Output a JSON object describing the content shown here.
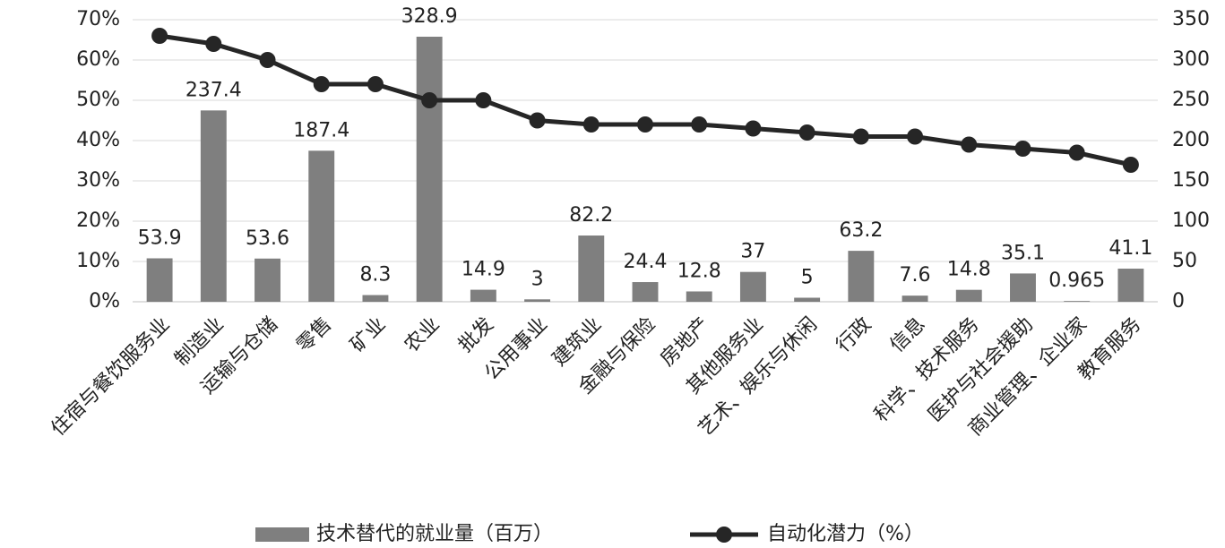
{
  "chart_data": {
    "type": "bar-line",
    "categories": [
      "住宿与餐饮服务业",
      "制造业",
      "运输与仓储",
      "零售",
      "矿业",
      "农业",
      "批发",
      "公用事业",
      "建筑业",
      "金融与保险",
      "房地产",
      "其他服务业",
      "艺术、娱乐与休闲",
      "行政",
      "信息",
      "科学、技术服务",
      "医护与社会援助",
      "商业管理、企业家",
      "教育服务"
    ],
    "series": [
      {
        "name": "技术替代的就业量（百万）",
        "type": "bar",
        "axis": "y2",
        "color": "#7f7f7f",
        "values": [
          53.9,
          237.4,
          53.6,
          187.4,
          8.3,
          328.9,
          14.9,
          3,
          82.2,
          24.4,
          12.8,
          37,
          5,
          63.2,
          7.6,
          14.8,
          35.1,
          0.965,
          41.1
        ]
      },
      {
        "name": "自动化潜力（%）",
        "type": "line",
        "axis": "y",
        "color": "#262626",
        "values": [
          66,
          64,
          60,
          54,
          54,
          50,
          50,
          45,
          44,
          44,
          44,
          43,
          42,
          41,
          41,
          39,
          38,
          37,
          34
        ]
      }
    ],
    "ylim": [
      0,
      70
    ],
    "yticks": [
      {
        "value": 0,
        "label": "0%"
      },
      {
        "value": 10,
        "label": "10%"
      },
      {
        "value": 20,
        "label": "20%"
      },
      {
        "value": 30,
        "label": "30%"
      },
      {
        "value": 40,
        "label": "40%"
      },
      {
        "value": 50,
        "label": "50%"
      },
      {
        "value": 60,
        "label": "60%"
      },
      {
        "value": 70,
        "label": "70%"
      }
    ],
    "y2lim": [
      0,
      350
    ],
    "y2ticks": [
      0,
      50,
      100,
      150,
      200,
      250,
      300,
      350
    ],
    "grid": true,
    "legend": "bottom"
  }
}
